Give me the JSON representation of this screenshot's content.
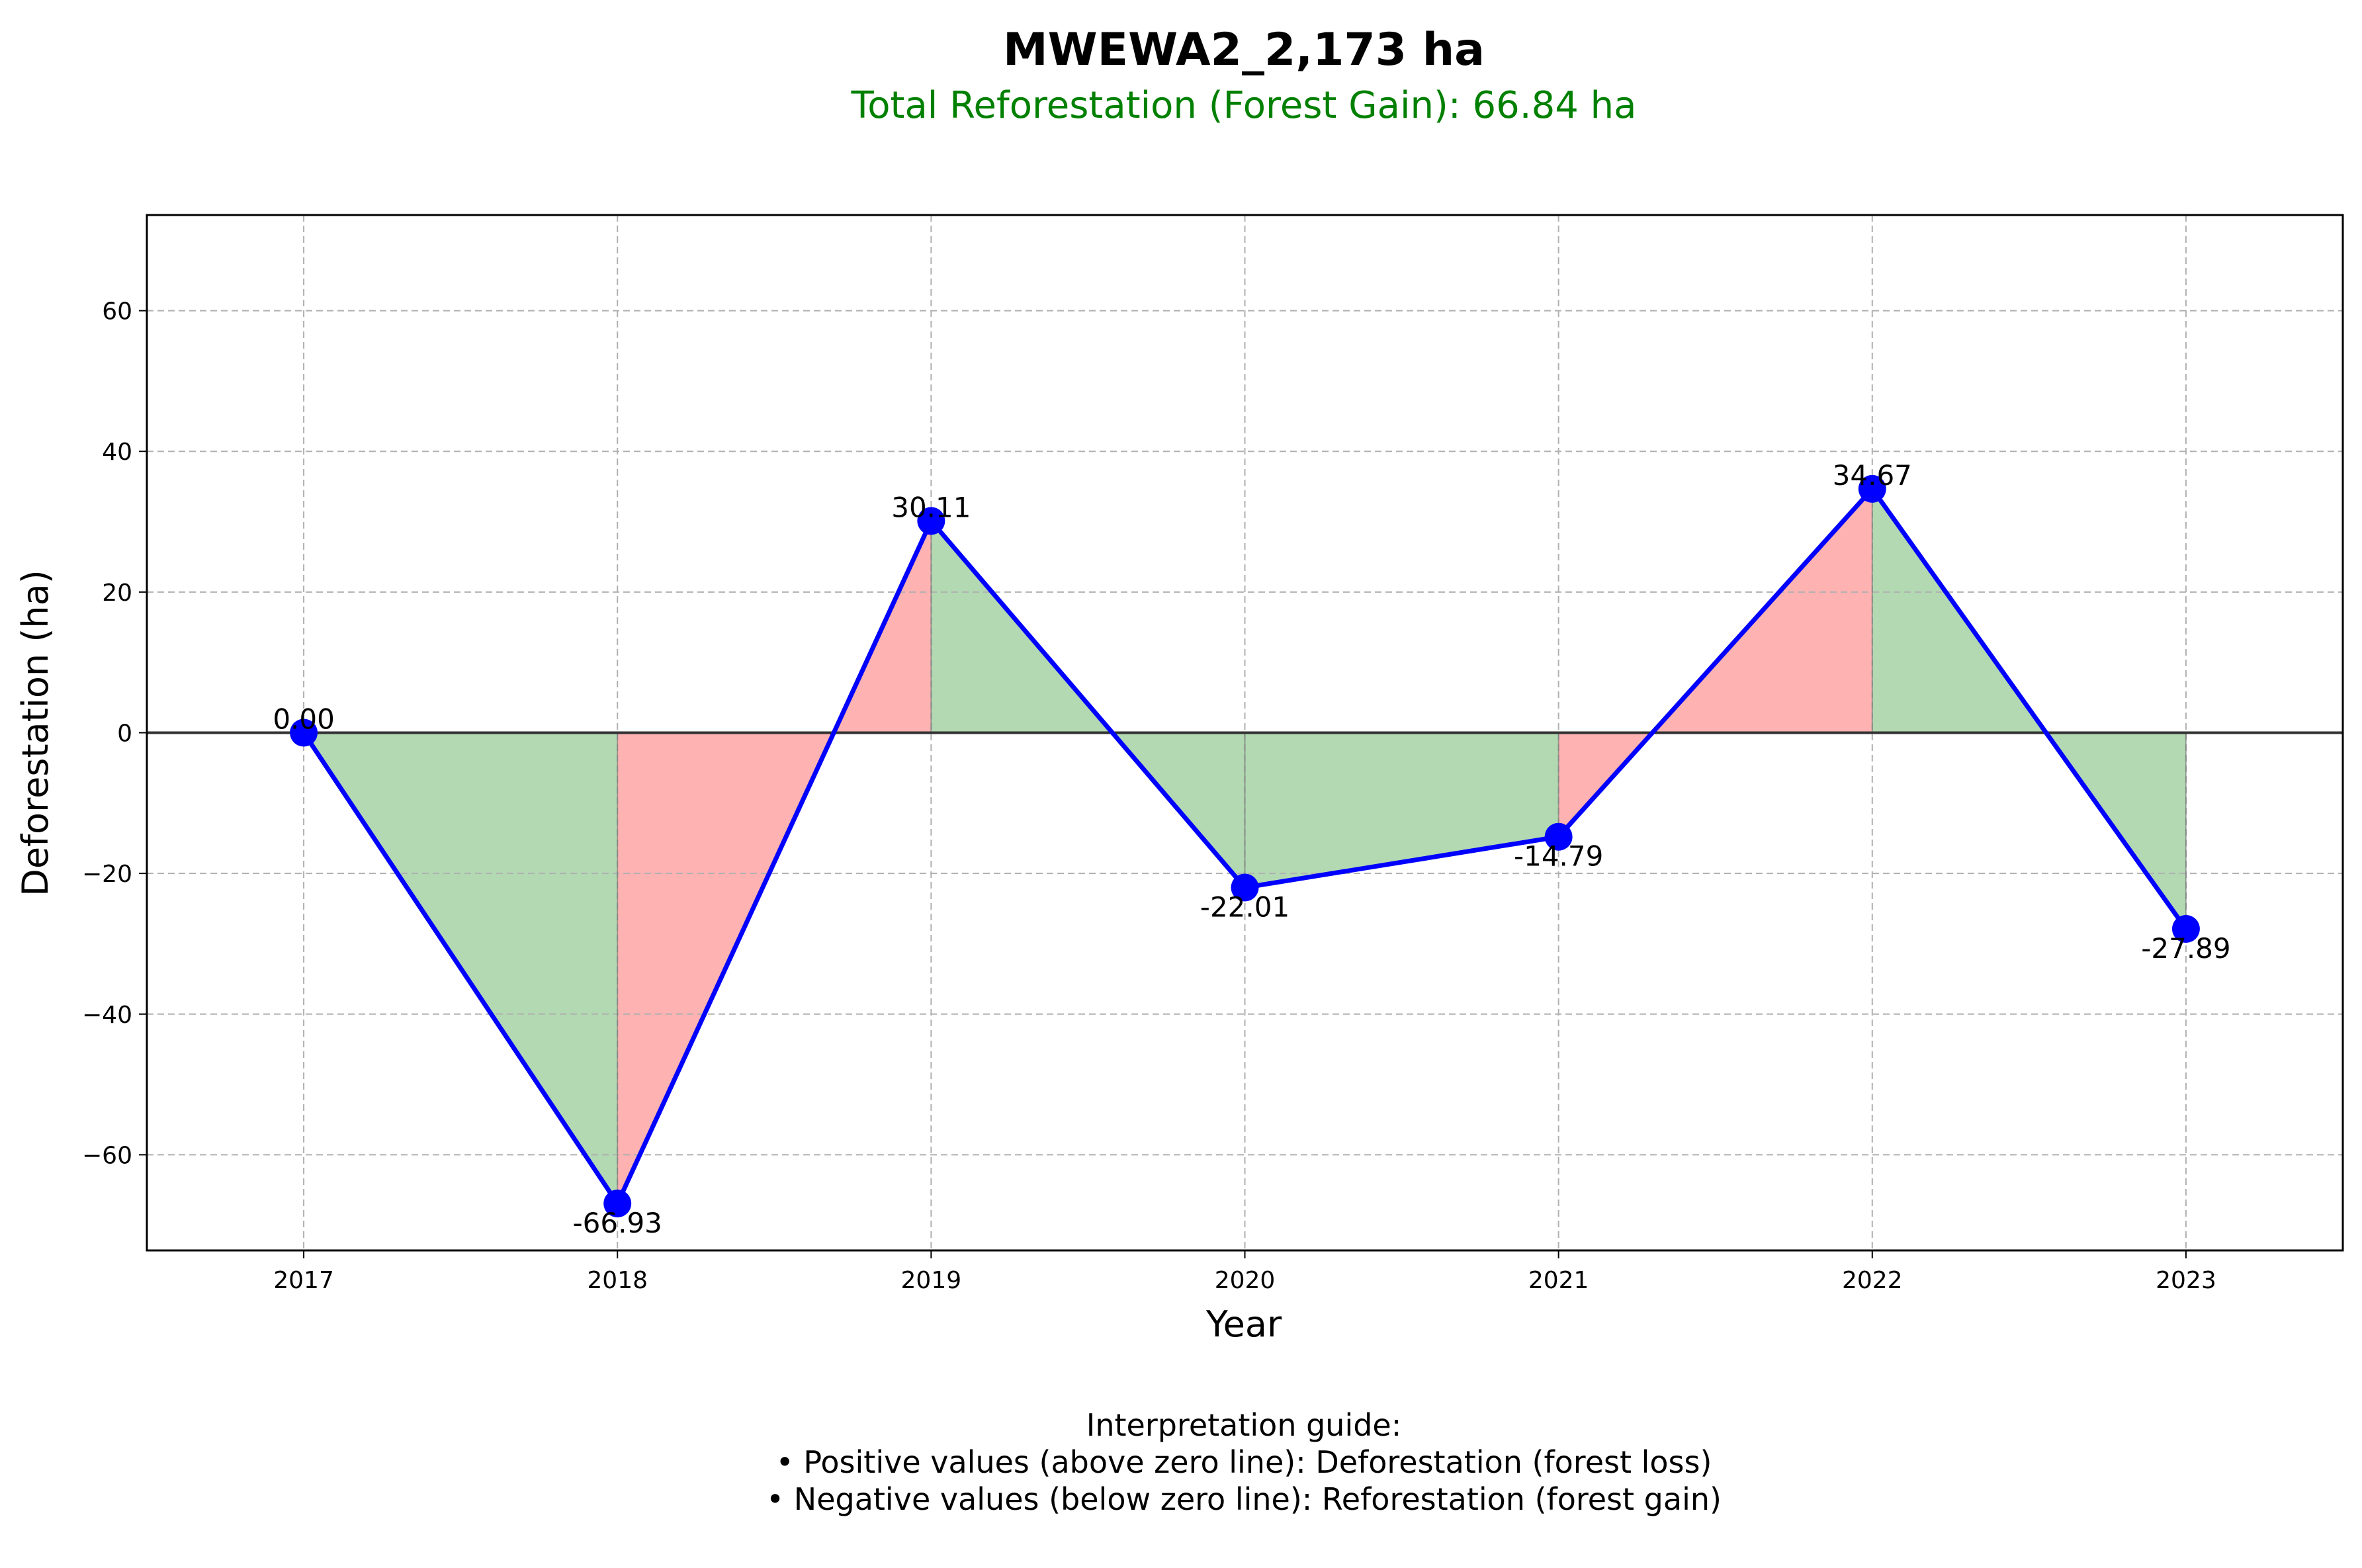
{
  "chart_data": {
    "type": "line",
    "title": "MWEWA2_2,173 ha",
    "subtitle": "Total Reforestation (Forest Gain): 66.84 ha",
    "xlabel": "Year",
    "ylabel": "Deforestation (ha)",
    "categories": [
      "2017",
      "2018",
      "2019",
      "2020",
      "2021",
      "2022",
      "2023"
    ],
    "values": [
      0.0,
      -66.93,
      30.11,
      -22.01,
      -14.79,
      34.67,
      -27.89
    ],
    "data_labels": [
      "0.00",
      "-66.93",
      "30.11",
      "-22.01",
      "-14.79",
      "34.67",
      "-27.89"
    ],
    "ylim": [
      -73.6,
      73.6
    ],
    "xlim": [
      -0.5,
      6.5
    ],
    "yticks": [
      -60,
      -40,
      -20,
      0,
      20,
      40,
      60
    ],
    "ytick_labels": [
      "−60",
      "−40",
      "−20",
      "0",
      "20",
      "40",
      "60"
    ],
    "grid": true,
    "zero_line": true,
    "colors": {
      "line": "#0000ff",
      "marker": "#0000ff",
      "subtitle": "#008000",
      "fill_gain": "#b2d9b2",
      "fill_loss": "#ffb2b2",
      "zero_line": "#333333",
      "grid": "#b0b0b0"
    }
  },
  "guide": {
    "heading": "Interpretation guide:",
    "lines": [
      "• Positive values (above zero line): Deforestation (forest loss)",
      "• Negative values (below zero line): Reforestation (forest gain)"
    ]
  }
}
